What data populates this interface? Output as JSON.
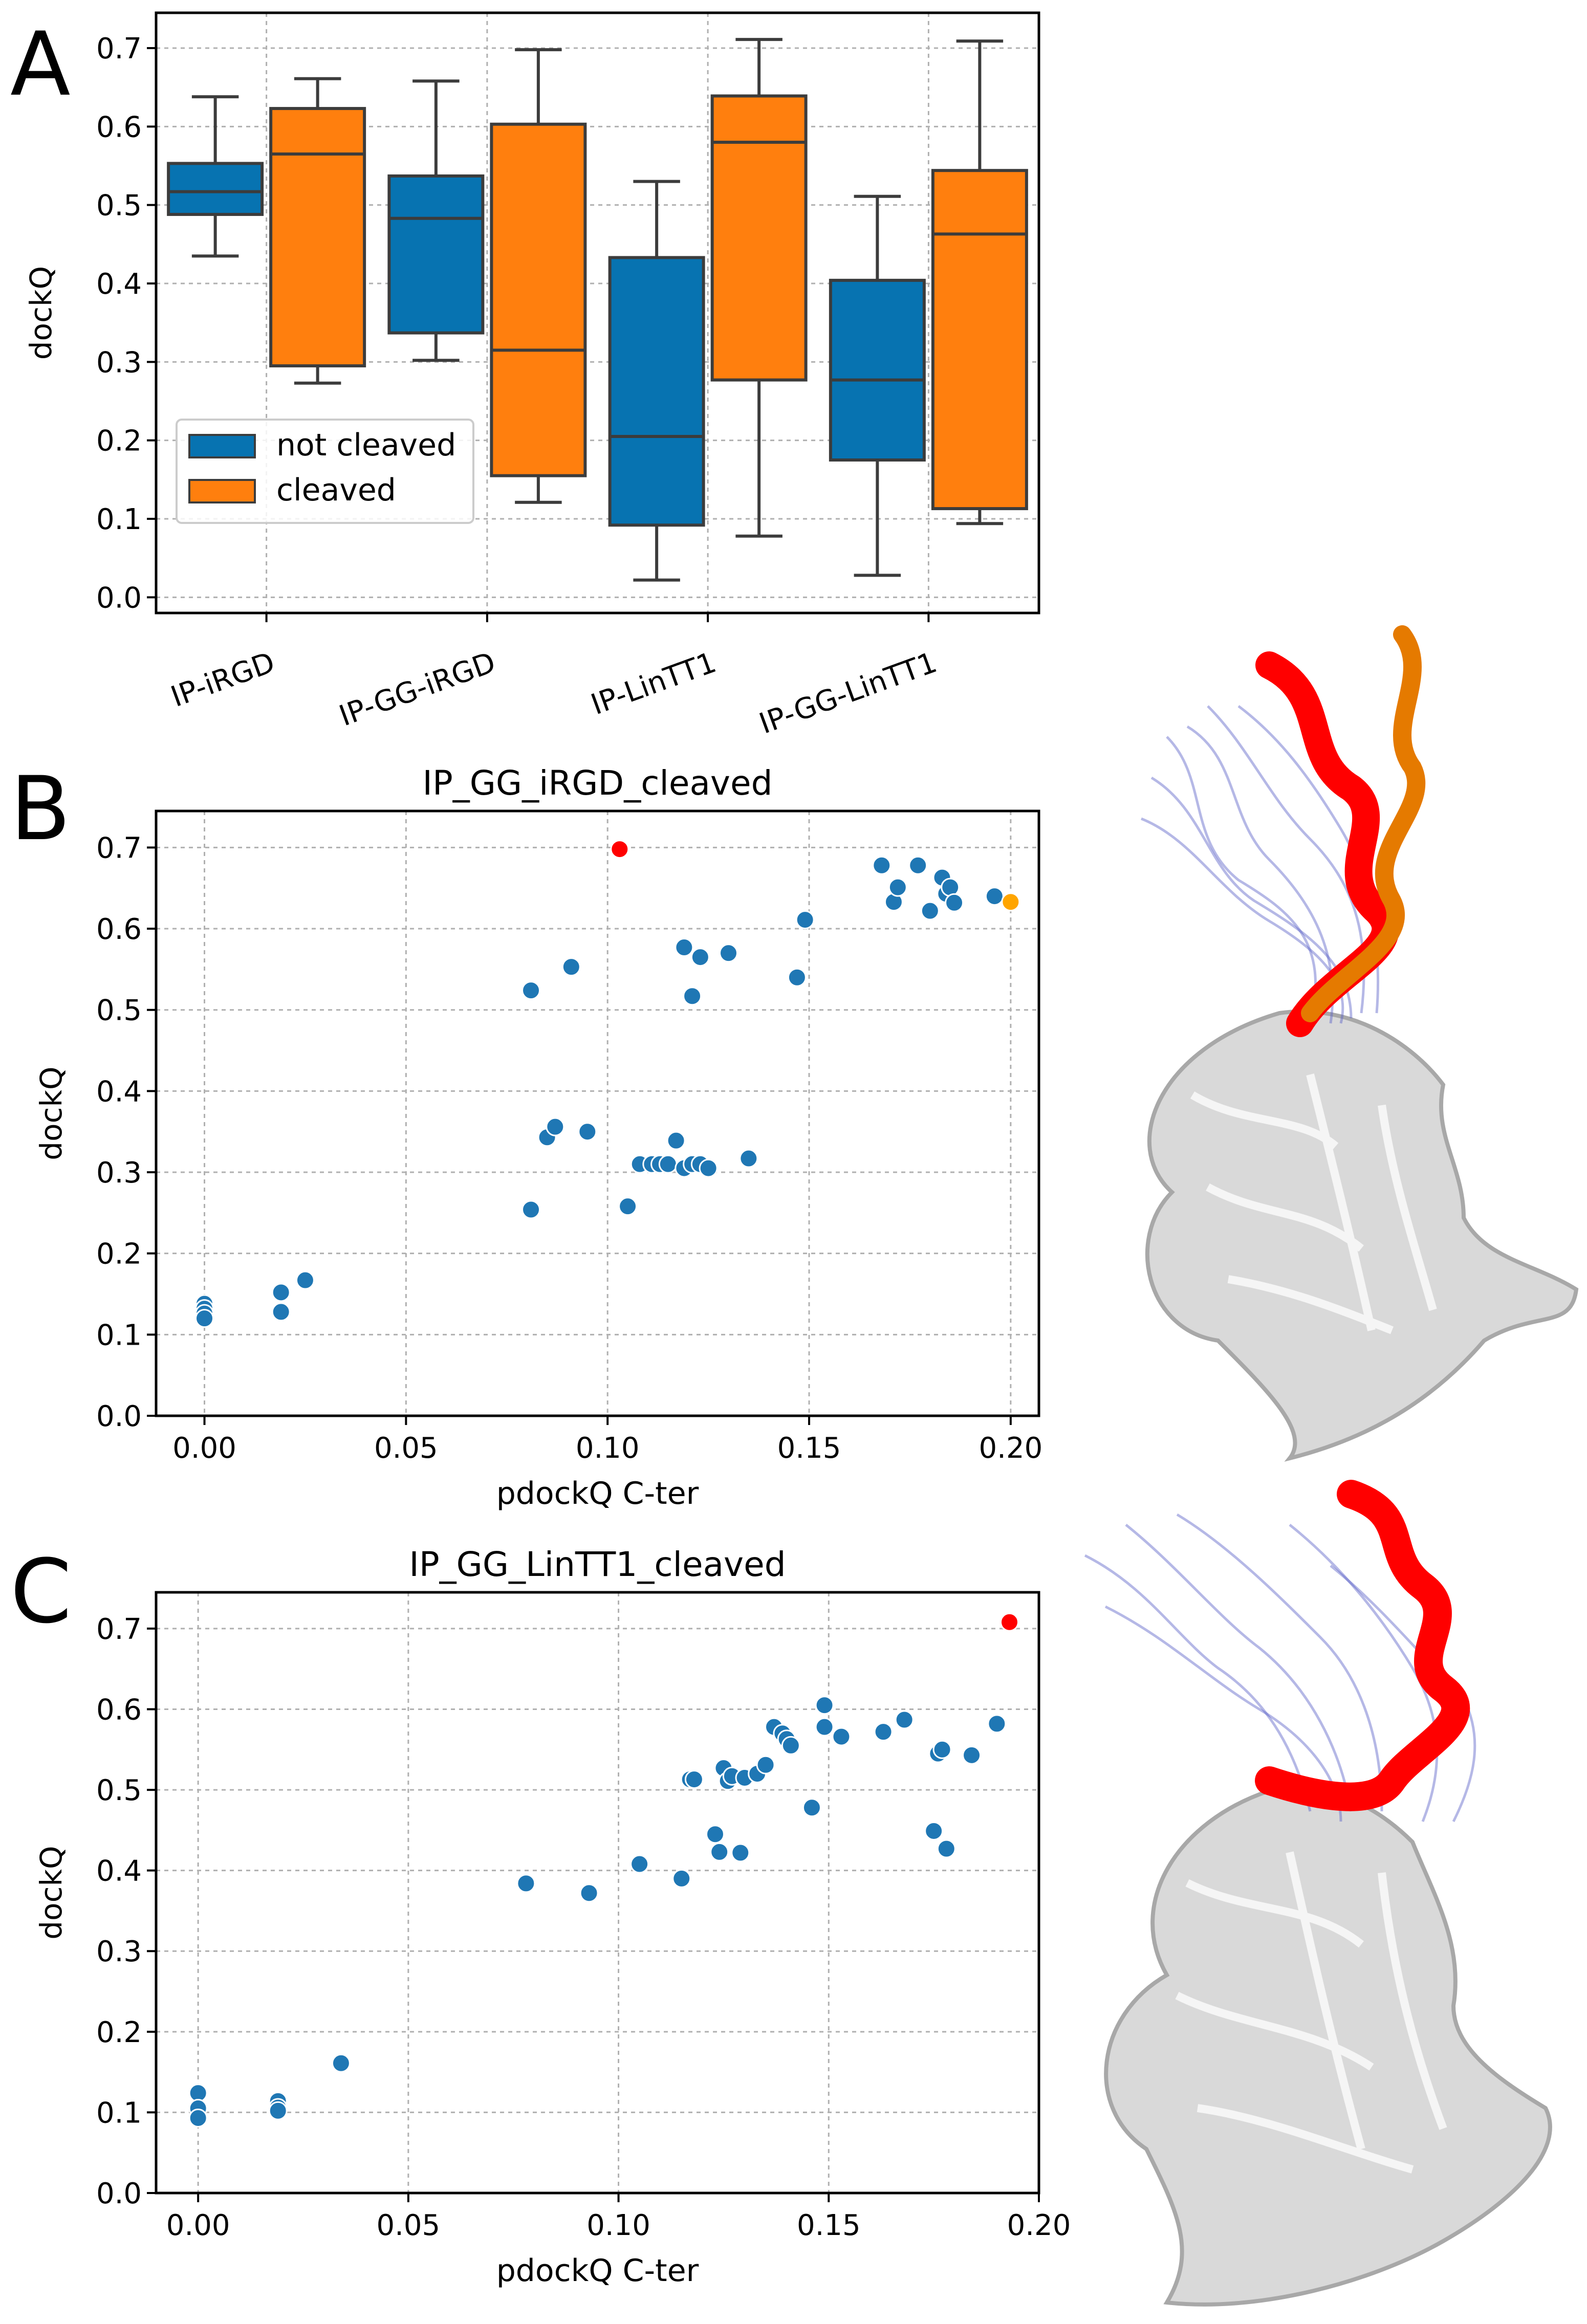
{
  "panel_letters": {
    "a": "A",
    "b": "B",
    "c": "C"
  },
  "colors": {
    "not_cleaved": "#0773b1",
    "cleaved": "#ff7f0e",
    "point": "#1f77b4",
    "highlight_red": "#ff0000",
    "highlight_orange": "#ffa500",
    "box_edge": "#3c3c3c",
    "grid": "#b0b0b0"
  },
  "icons": {
    "structure_b": "protein-structure-icon",
    "structure_c": "protein-structure-icon"
  },
  "chart_data": [
    {
      "type": "box",
      "title": "",
      "xlabel": "",
      "ylabel": "dockQ",
      "ylim": [
        -0.02,
        0.745
      ],
      "yticks": [
        0.0,
        0.1,
        0.2,
        0.3,
        0.4,
        0.5,
        0.6,
        0.7
      ],
      "ytick_labels": [
        "0.0",
        "0.1",
        "0.2",
        "0.3",
        "0.4",
        "0.5",
        "0.6",
        "0.7"
      ],
      "categories": [
        "IP-iRGD",
        "IP-GG-iRGD",
        "IP-LinTT1",
        "IP-GG-LinTT1"
      ],
      "legend": [
        "not cleaved",
        "cleaved"
      ],
      "legend_position": "lower-left",
      "grid": true,
      "series": [
        {
          "name": "not cleaved",
          "boxes": [
            {
              "min": 0.435,
              "q1": 0.488,
              "median": 0.517,
              "q3": 0.553,
              "max": 0.638
            },
            {
              "min": 0.302,
              "q1": 0.337,
              "median": 0.483,
              "q3": 0.537,
              "max": 0.658
            },
            {
              "min": 0.022,
              "q1": 0.092,
              "median": 0.205,
              "q3": 0.433,
              "max": 0.53
            },
            {
              "min": 0.028,
              "q1": 0.175,
              "median": 0.277,
              "q3": 0.404,
              "max": 0.511
            }
          ]
        },
        {
          "name": "cleaved",
          "boxes": [
            {
              "min": 0.273,
              "q1": 0.295,
              "median": 0.565,
              "q3": 0.623,
              "max": 0.661
            },
            {
              "min": 0.121,
              "q1": 0.155,
              "median": 0.315,
              "q3": 0.603,
              "max": 0.698
            },
            {
              "min": 0.078,
              "q1": 0.277,
              "median": 0.58,
              "q3": 0.639,
              "max": 0.711
            },
            {
              "min": 0.094,
              "q1": 0.113,
              "median": 0.463,
              "q3": 0.544,
              "max": 0.709
            }
          ]
        }
      ]
    },
    {
      "type": "scatter",
      "title": "IP_GG_iRGD_cleaved",
      "xlabel": "pdockQ C-ter",
      "ylabel": "dockQ",
      "xlim": [
        -0.012,
        0.207
      ],
      "ylim": [
        0.0,
        0.745
      ],
      "xticks": [
        0.0,
        0.05,
        0.1,
        0.15,
        0.2
      ],
      "xtick_labels": [
        "0.00",
        "0.05",
        "0.10",
        "0.15",
        "0.20"
      ],
      "yticks": [
        0.0,
        0.1,
        0.2,
        0.3,
        0.4,
        0.5,
        0.6,
        0.7
      ],
      "ytick_labels": [
        "0.0",
        "0.1",
        "0.2",
        "0.3",
        "0.4",
        "0.5",
        "0.6",
        "0.7"
      ],
      "grid": true,
      "points": [
        [
          0.0,
          0.138
        ],
        [
          0.0,
          0.132
        ],
        [
          0.0,
          0.126
        ],
        [
          0.0,
          0.12
        ],
        [
          0.019,
          0.152
        ],
        [
          0.019,
          0.128
        ],
        [
          0.025,
          0.167
        ],
        [
          0.081,
          0.254
        ],
        [
          0.081,
          0.524
        ],
        [
          0.085,
          0.343
        ],
        [
          0.087,
          0.356
        ],
        [
          0.091,
          0.553
        ],
        [
          0.095,
          0.35
        ],
        [
          0.105,
          0.258
        ],
        [
          0.108,
          0.31
        ],
        [
          0.111,
          0.31
        ],
        [
          0.113,
          0.31
        ],
        [
          0.115,
          0.31
        ],
        [
          0.117,
          0.339
        ],
        [
          0.119,
          0.305
        ],
        [
          0.121,
          0.31
        ],
        [
          0.123,
          0.31
        ],
        [
          0.125,
          0.305
        ],
        [
          0.119,
          0.577
        ],
        [
          0.121,
          0.517
        ],
        [
          0.123,
          0.565
        ],
        [
          0.13,
          0.57
        ],
        [
          0.135,
          0.317
        ],
        [
          0.147,
          0.54
        ],
        [
          0.149,
          0.611
        ],
        [
          0.168,
          0.678
        ],
        [
          0.171,
          0.633
        ],
        [
          0.172,
          0.651
        ],
        [
          0.177,
          0.678
        ],
        [
          0.18,
          0.622
        ],
        [
          0.183,
          0.663
        ],
        [
          0.184,
          0.643
        ],
        [
          0.185,
          0.651
        ],
        [
          0.186,
          0.632
        ],
        [
          0.196,
          0.64
        ]
      ],
      "highlights": [
        {
          "x": 0.103,
          "y": 0.698,
          "color": "red"
        },
        {
          "x": 0.2,
          "y": 0.633,
          "color": "orange"
        }
      ]
    },
    {
      "type": "scatter",
      "title": "IP_GG_LinTT1_cleaved",
      "xlabel": "pdockQ C-ter",
      "ylabel": "dockQ",
      "xlim": [
        -0.01,
        0.2
      ],
      "ylim": [
        0.0,
        0.745
      ],
      "xticks": [
        0.0,
        0.05,
        0.1,
        0.15,
        0.2
      ],
      "xtick_labels": [
        "0.00",
        "0.05",
        "0.10",
        "0.15",
        "0.20"
      ],
      "yticks": [
        0.0,
        0.1,
        0.2,
        0.3,
        0.4,
        0.5,
        0.6,
        0.7
      ],
      "ytick_labels": [
        "0.0",
        "0.1",
        "0.2",
        "0.3",
        "0.4",
        "0.5",
        "0.6",
        "0.7"
      ],
      "grid": true,
      "points": [
        [
          0.0,
          0.124
        ],
        [
          0.0,
          0.105
        ],
        [
          0.0,
          0.093
        ],
        [
          0.019,
          0.114
        ],
        [
          0.019,
          0.106
        ],
        [
          0.019,
          0.102
        ],
        [
          0.034,
          0.161
        ],
        [
          0.078,
          0.384
        ],
        [
          0.093,
          0.372
        ],
        [
          0.105,
          0.408
        ],
        [
          0.115,
          0.39
        ],
        [
          0.117,
          0.513
        ],
        [
          0.118,
          0.513
        ],
        [
          0.123,
          0.445
        ],
        [
          0.124,
          0.423
        ],
        [
          0.125,
          0.527
        ],
        [
          0.126,
          0.511
        ],
        [
          0.127,
          0.517
        ],
        [
          0.129,
          0.422
        ],
        [
          0.13,
          0.515
        ],
        [
          0.133,
          0.52
        ],
        [
          0.135,
          0.531
        ],
        [
          0.137,
          0.578
        ],
        [
          0.139,
          0.57
        ],
        [
          0.14,
          0.563
        ],
        [
          0.141,
          0.555
        ],
        [
          0.146,
          0.478
        ],
        [
          0.149,
          0.605
        ],
        [
          0.149,
          0.578
        ],
        [
          0.153,
          0.566
        ],
        [
          0.163,
          0.572
        ],
        [
          0.168,
          0.587
        ],
        [
          0.175,
          0.449
        ],
        [
          0.176,
          0.545
        ],
        [
          0.177,
          0.55
        ],
        [
          0.178,
          0.427
        ],
        [
          0.184,
          0.543
        ],
        [
          0.19,
          0.582
        ]
      ],
      "highlights": [
        {
          "x": 0.193,
          "y": 0.708,
          "color": "red"
        }
      ]
    }
  ]
}
